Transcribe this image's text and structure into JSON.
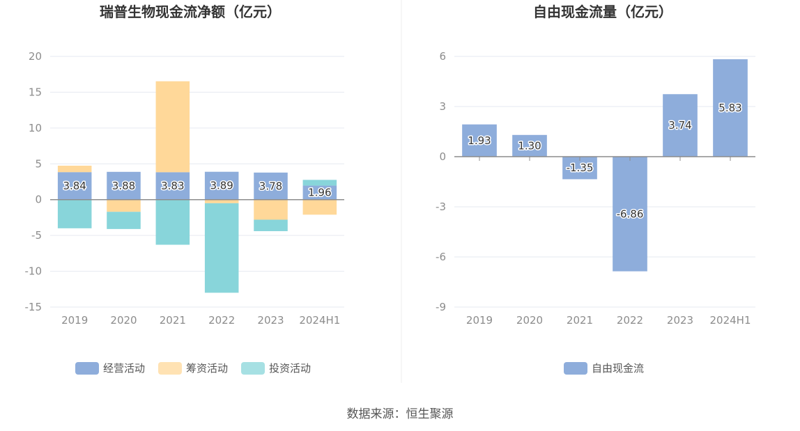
{
  "chart_data": [
    {
      "type": "bar",
      "stacked": true,
      "title": "瑞普生物现金流净额（亿元）",
      "categories": [
        "2019",
        "2020",
        "2021",
        "2022",
        "2023",
        "2024H1"
      ],
      "series": [
        {
          "name": "经营活动",
          "color": "#8eaddb",
          "values": [
            3.84,
            3.88,
            3.83,
            3.89,
            3.78,
            1.96
          ]
        },
        {
          "name": "筹资活动",
          "color": "#ffd899",
          "values": [
            0.9,
            -1.7,
            12.7,
            -0.5,
            -2.8,
            -2.1
          ]
        },
        {
          "name": "投资活动",
          "color": "#88d5da",
          "values": [
            -4.0,
            -2.4,
            -6.3,
            -12.5,
            -1.6,
            0.8
          ]
        }
      ],
      "data_labels": [
        "3.84",
        "3.88",
        "3.83",
        "3.89",
        "3.78",
        "1.96"
      ],
      "ylim": [
        -15,
        20
      ],
      "yticks": [
        "20",
        "15",
        "10",
        "5",
        "0",
        "-5",
        "-10",
        "-15"
      ],
      "grid": true,
      "legend": "bottom"
    },
    {
      "type": "bar",
      "title": "自由现金流量（亿元）",
      "categories": [
        "2019",
        "2020",
        "2021",
        "2022",
        "2023",
        "2024H1"
      ],
      "series": [
        {
          "name": "自由现金流",
          "color": "#8eaddb",
          "values": [
            1.93,
            1.3,
            -1.35,
            -6.86,
            3.74,
            5.83
          ]
        }
      ],
      "data_labels": [
        "1.93",
        "1.30",
        "-1.35",
        "-6.86",
        "3.74",
        "5.83"
      ],
      "ylim": [
        -9,
        6
      ],
      "yticks": [
        "6",
        "3",
        "0",
        "-3",
        "-6",
        "-9"
      ],
      "grid": true,
      "legend": "bottom"
    }
  ],
  "source": "数据来源：恒生聚源",
  "colors": {
    "grid": "#e6e9f0",
    "axis": "#8c8c8c",
    "divider": "#eeeeee"
  }
}
